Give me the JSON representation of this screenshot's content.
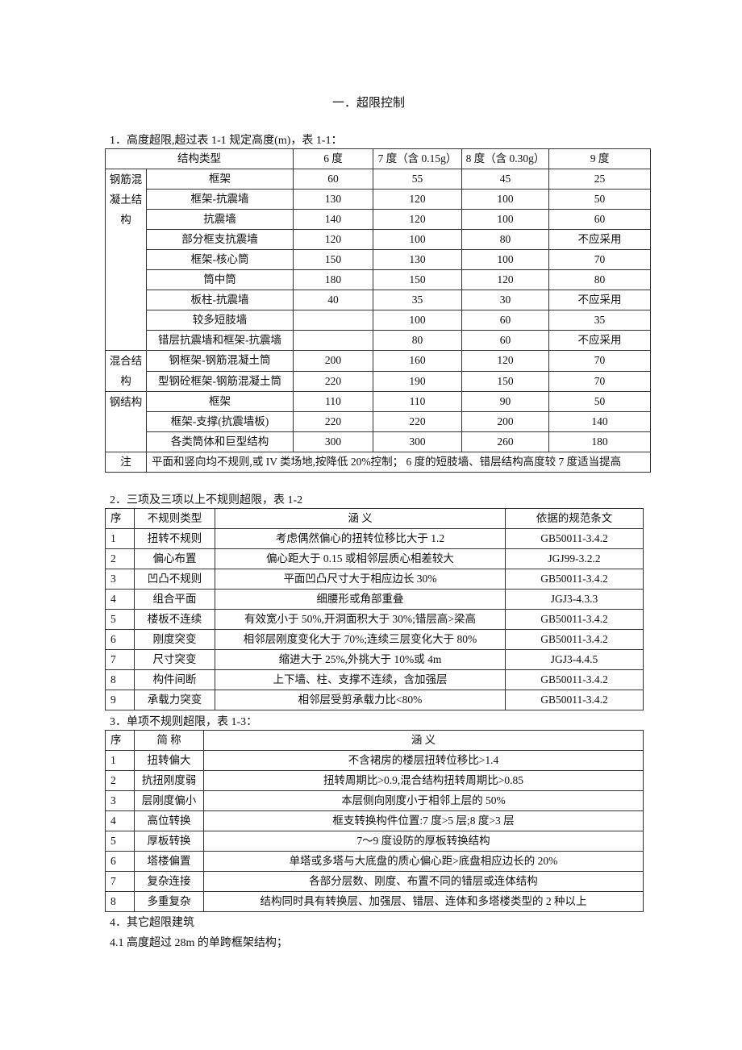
{
  "title": "一．超限控制",
  "section1": {
    "heading": "1．高度超限,超过表 1-1 规定高度(m)，表 1-1：",
    "header": [
      "结构类型",
      "6 度",
      "7 度（含 0.15g）",
      "8 度（含 0.30g）",
      "9 度"
    ],
    "groups": [
      {
        "name": "钢筋混凝土结构",
        "rows": [
          [
            "框架",
            "60",
            "55",
            "45",
            "25"
          ],
          [
            "框架-抗震墙",
            "130",
            "120",
            "100",
            "50"
          ],
          [
            "抗震墙",
            "140",
            "120",
            "100",
            "60"
          ],
          [
            "部分框支抗震墙",
            "120",
            "100",
            "80",
            "不应采用"
          ],
          [
            "框架-核心筒",
            "150",
            "130",
            "100",
            "70"
          ],
          [
            "筒中筒",
            "180",
            "150",
            "120",
            "80"
          ],
          [
            "板柱-抗震墙",
            "40",
            "35",
            "30",
            "不应采用"
          ],
          [
            "较多短肢墙",
            "",
            "100",
            "60",
            "35"
          ],
          [
            "错层抗震墙和框架-抗震墙",
            "",
            "80",
            "60",
            "不应采用"
          ]
        ]
      },
      {
        "name": "混合结构",
        "rows": [
          [
            "钢框架-钢筋混凝土筒",
            "200",
            "160",
            "120",
            "70"
          ],
          [
            "型钢砼框架-钢筋混凝土筒",
            "220",
            "190",
            "150",
            "70"
          ]
        ]
      },
      {
        "name": "钢结构",
        "rows": [
          [
            "框架",
            "110",
            "110",
            "90",
            "50"
          ],
          [
            "框架-支撑(抗震墙板)",
            "220",
            "220",
            "200",
            "140"
          ],
          [
            "各类筒体和巨型结构",
            "300",
            "300",
            "260",
            "180"
          ]
        ]
      }
    ],
    "note_label": "注",
    "note": "平面和竖向均不规则,或 IV 类场地,按降低 20%控制；  6 度的短肢墙、错层结构高度较 7 度适当提高"
  },
  "section2": {
    "heading": "2．三项及三项以上不规则超限，表 1-2",
    "header": [
      "序",
      "不规则类型",
      "涵        义",
      "依据的规范条文"
    ],
    "rows": [
      [
        "1",
        "扭转不规则",
        "考虑偶然偏心的扭转位移比大于 1.2",
        "GB50011-3.4.2"
      ],
      [
        "2",
        "偏心布置",
        "偏心距大于 0.15 或相邻层质心相差较大",
        "JGJ99-3.2.2"
      ],
      [
        "3",
        "凹凸不规则",
        "平面凹凸尺寸大于相应边长 30%",
        "GB50011-3.4.2"
      ],
      [
        "4",
        "组合平面",
        "细腰形或角部重叠",
        "JGJ3-4.3.3"
      ],
      [
        "5",
        "楼板不连续",
        "有效宽小于 50%,开洞面积大于 30%;错层高>梁高",
        "GB50011-3.4.2"
      ],
      [
        "6",
        "刚度突变",
        "相邻层刚度变化大于 70%;连续三层变化大于 80%",
        "GB50011-3.4.2"
      ],
      [
        "7",
        "尺寸突变",
        "缩进大于 25%,外挑大于 10%或 4m",
        "JGJ3-4.4.5"
      ],
      [
        "8",
        "构件间断",
        "上下墙、柱、支撑不连续，含加强层",
        "GB50011-3.4.2"
      ],
      [
        "9",
        "承载力突变",
        "相邻层受剪承载力比<80%",
        "GB50011-3.4.2"
      ]
    ]
  },
  "section3": {
    "heading": "3．单项不规则超限，表 1-3：",
    "header": [
      "序",
      "简    称",
      "涵        义"
    ],
    "rows": [
      [
        "1",
        "扭转偏大",
        "不含裙房的楼层扭转位移比>1.4"
      ],
      [
        "2",
        "抗扭刚度弱",
        "扭转周期比>0.9,混合结构扭转周期比>0.85"
      ],
      [
        "3",
        "层刚度偏小",
        "本层侧向刚度小于相邻上层的 50%"
      ],
      [
        "4",
        "高位转换",
        "框支转换构件位置:7 度>5 层;8 度>3 层"
      ],
      [
        "5",
        "厚板转换",
        "7～9 度设防的厚板转换结构"
      ],
      [
        "6",
        "塔楼偏置",
        "单塔或多塔与大底盘的质心偏心距>底盘相应边长的 20%"
      ],
      [
        "7",
        "复杂连接",
        "各部分层数、刚度、布置不同的错层或连体结构"
      ],
      [
        "8",
        "多重复杂",
        "结构同时具有转换层、加强层、错层、连体和多塔楼类型的 2 种以上"
      ]
    ]
  },
  "section4": {
    "heading": "4．其它超限建筑",
    "items": [
      "4.1  高度超过 28m 的单跨框架结构；"
    ]
  }
}
